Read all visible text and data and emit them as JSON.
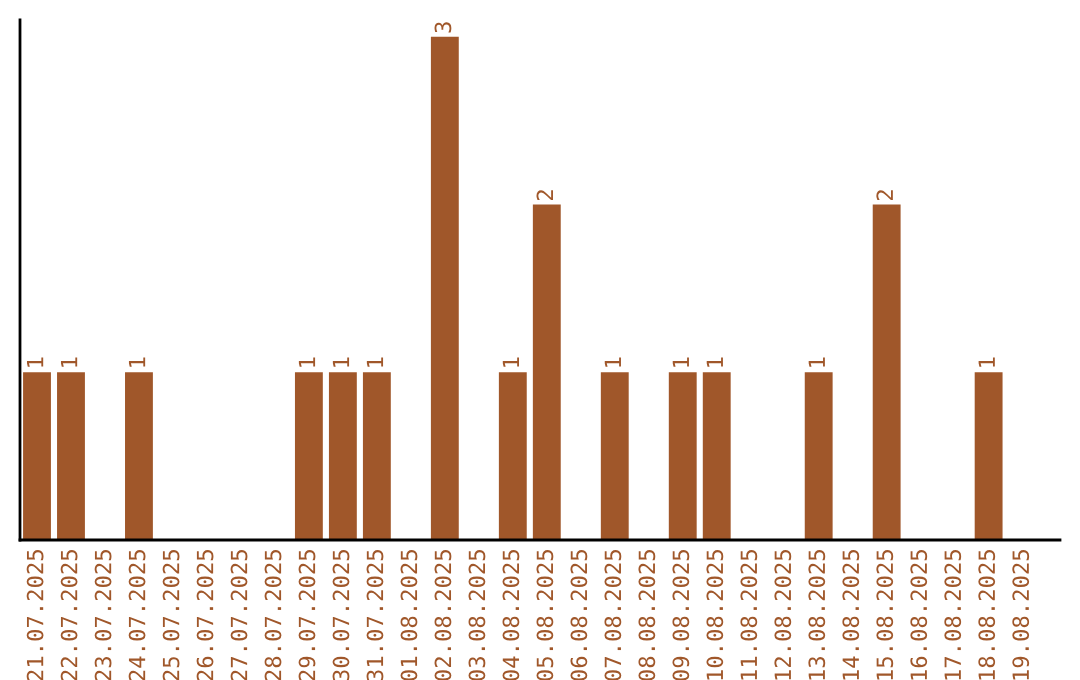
{
  "chart_data": {
    "type": "bar",
    "categories": [
      "21.07.2025",
      "22.07.2025",
      "23.07.2025",
      "24.07.2025",
      "25.07.2025",
      "26.07.2025",
      "27.07.2025",
      "28.07.2025",
      "29.07.2025",
      "30.07.2025",
      "31.07.2025",
      "01.08.2025",
      "02.08.2025",
      "03.08.2025",
      "04.08.2025",
      "05.08.2025",
      "06.08.2025",
      "07.08.2025",
      "08.08.2025",
      "09.08.2025",
      "10.08.2025",
      "11.08.2025",
      "12.08.2025",
      "13.08.2025",
      "14.08.2025",
      "15.08.2025",
      "16.08.2025",
      "17.08.2025",
      "18.08.2025",
      "19.08.2025"
    ],
    "values": [
      1,
      1,
      0,
      1,
      0,
      0,
      0,
      0,
      1,
      1,
      1,
      0,
      3,
      0,
      1,
      2,
      0,
      1,
      0,
      1,
      1,
      0,
      0,
      1,
      0,
      2,
      0,
      0,
      1,
      0
    ],
    "value_labels": [
      "1",
      "1",
      null,
      "1",
      null,
      null,
      null,
      null,
      "1",
      "1",
      "1",
      null,
      "3",
      null,
      "1",
      "2",
      null,
      "1",
      null,
      "1",
      "1",
      null,
      null,
      "1",
      null,
      "2",
      null,
      null,
      "1",
      null
    ],
    "color": "#a0572a",
    "ylim": [
      0,
      3.1
    ],
    "tick_labels": "x",
    "grid": false,
    "legend": false
  }
}
